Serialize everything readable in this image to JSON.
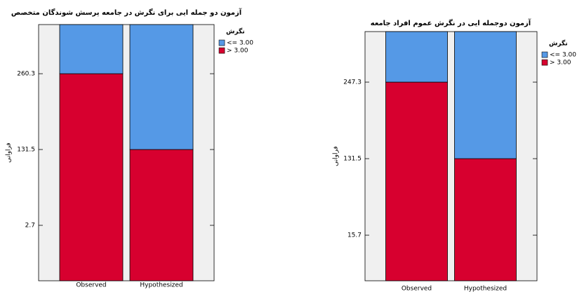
{
  "chart_data": [
    {
      "type": "bar",
      "stacked": true,
      "title": "آزمون دو جمله ایی برای نگرش در جامعه پرسش شوندگان متخصص",
      "y_label": "فراوانی",
      "legend_title": "نگرش",
      "categories": [
        "Observed",
        "Hypothesized"
      ],
      "series": [
        {
          "name": "<= 3.00",
          "color": "#5599e6",
          "values": [
            83.5,
            212.3
          ]
        },
        {
          "name": "> 3.00",
          "color": "#d7002f",
          "values": [
            260.3,
            131.5
          ]
        }
      ],
      "ylim": [
        -91.5,
        343.8
      ],
      "yticks": [
        2.7,
        131.5,
        260.3
      ]
    },
    {
      "type": "bar",
      "stacked": true,
      "title": "آزمون دوجمله ایی در نگرش عموم افراد جامعه",
      "y_label": "فراوانی",
      "legend_title": "نگرش",
      "categories": [
        "Observed",
        "Hypothesized"
      ],
      "series": [
        {
          "name": "<= 3.00",
          "color": "#5599e6",
          "values": [
            76.5,
            192.3
          ]
        },
        {
          "name": "> 3.00",
          "color": "#d7002f",
          "values": [
            247.3,
            131.5
          ]
        }
      ],
      "ylim": [
        -53.3,
        323.8
      ],
      "yticks": [
        15.7,
        131.5,
        247.3
      ]
    }
  ]
}
